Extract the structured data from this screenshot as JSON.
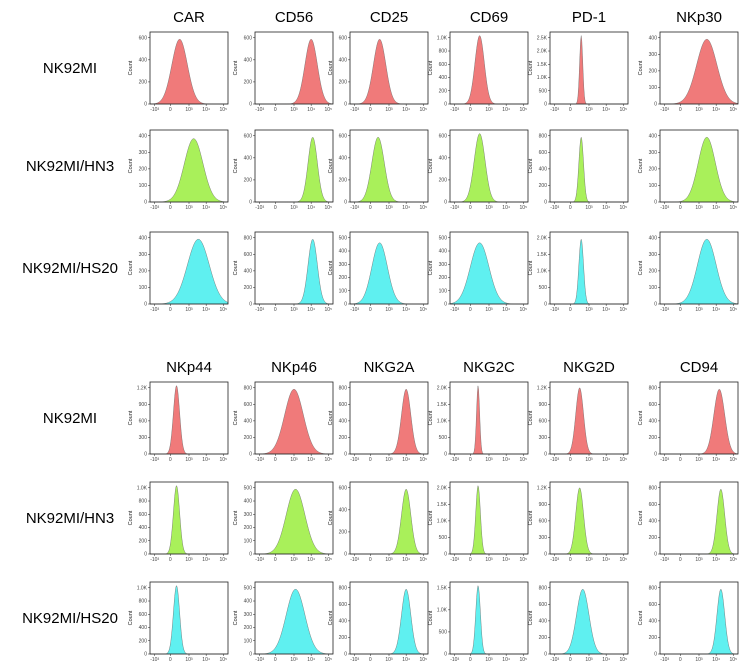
{
  "colors": {
    "NK92MI": "#f07a7a",
    "NK92MI/HN3": "#a9f05a",
    "NK92MI/HS20": "#5ff0f0"
  },
  "chart_data": [
    {
      "type": "histogram_grid",
      "y_axis_label": "Count",
      "x_tick_labels": [
        "-10³",
        "0",
        "10³",
        "10⁴",
        "10⁵"
      ],
      "rows": [
        "NK92MI",
        "NK92MI/HN3",
        "NK92MI/HS20"
      ],
      "columns": [
        {
          "marker": "CAR",
          "yticks": [
            [
              "0",
              "200",
              "400",
              "600"
            ],
            [
              "0",
              "100",
              "200",
              "300",
              "400"
            ],
            [
              "0",
              "100",
              "200",
              "300",
              "400"
            ]
          ],
          "peaks": [
            [
              0.38,
              0.1,
              0.9
            ],
            [
              0.56,
              0.12,
              0.88
            ],
            [
              0.62,
              0.14,
              0.9
            ]
          ]
        },
        {
          "marker": "CD56",
          "yticks": [
            [
              "0",
              "200",
              "400",
              "600"
            ],
            [
              "0",
              "200",
              "400",
              "600"
            ],
            [
              "0",
              "200",
              "400",
              "600",
              "800"
            ]
          ],
          "peaks": [
            [
              0.72,
              0.08,
              0.9
            ],
            [
              0.74,
              0.06,
              0.9
            ],
            [
              0.74,
              0.06,
              0.9
            ]
          ]
        },
        {
          "marker": "CD25",
          "yticks": [
            [
              "0",
              "200",
              "400",
              "600"
            ],
            [
              "0",
              "200",
              "400",
              "600"
            ],
            [
              "0",
              "100",
              "200",
              "300",
              "400",
              "500"
            ]
          ],
          "peaks": [
            [
              0.38,
              0.08,
              0.9
            ],
            [
              0.36,
              0.08,
              0.9
            ],
            [
              0.38,
              0.1,
              0.85
            ]
          ]
        },
        {
          "marker": "CD69",
          "yticks": [
            [
              "0",
              "200",
              "400",
              "600",
              "800",
              "1.0K"
            ],
            [
              "0",
              "200",
              "400",
              "600"
            ],
            [
              "0",
              "100",
              "200",
              "300",
              "400",
              "500"
            ]
          ],
          "peaks": [
            [
              0.38,
              0.06,
              0.95
            ],
            [
              0.38,
              0.07,
              0.95
            ],
            [
              0.38,
              0.12,
              0.85
            ]
          ]
        },
        {
          "marker": "PD-1",
          "yticks": [
            [
              "0",
              "500",
              "1.0K",
              "1.5K",
              "2.0K",
              "2.5K"
            ],
            [
              "0",
              "200",
              "400",
              "600",
              "800"
            ],
            [
              "0",
              "500",
              "1.0K",
              "1.5K",
              "2.0K"
            ]
          ],
          "peaks": [
            [
              0.4,
              0.02,
              0.95
            ],
            [
              0.4,
              0.03,
              0.9
            ],
            [
              0.4,
              0.03,
              0.9
            ]
          ]
        },
        {
          "marker": "NKp30",
          "yticks": [
            [
              "0",
              "100",
              "200",
              "300",
              "400"
            ],
            [
              "0",
              "100",
              "200",
              "300",
              "400"
            ],
            [
              "0",
              "100",
              "200",
              "300",
              "400"
            ]
          ],
          "peaks": [
            [
              0.6,
              0.13,
              0.9
            ],
            [
              0.6,
              0.11,
              0.9
            ],
            [
              0.6,
              0.12,
              0.9
            ]
          ]
        },
        {
          "marker": "NKp44",
          "yticks": [
            [
              "0",
              "300",
              "600",
              "900",
              "1.2K"
            ],
            [
              "0",
              "200",
              "400",
              "600",
              "800",
              "1.0K"
            ],
            [
              "0",
              "200",
              "400",
              "600",
              "800",
              "1.0K"
            ]
          ],
          "peaks": [
            [
              0.34,
              0.04,
              0.95
            ],
            [
              0.34,
              0.04,
              0.95
            ],
            [
              0.34,
              0.04,
              0.95
            ]
          ]
        },
        {
          "marker": "NKp46",
          "yticks": [
            [
              "0",
              "200",
              "400",
              "600",
              "800"
            ],
            [
              "0",
              "100",
              "200",
              "300",
              "400",
              "500"
            ],
            [
              "0",
              "100",
              "200",
              "300",
              "400",
              "500"
            ]
          ],
          "peaks": [
            [
              0.5,
              0.12,
              0.9
            ],
            [
              0.52,
              0.12,
              0.9
            ],
            [
              0.52,
              0.12,
              0.9
            ]
          ]
        },
        {
          "marker": "NKG2A",
          "yticks": [
            [
              "0",
              "200",
              "400",
              "600",
              "800"
            ],
            [
              "0",
              "200",
              "400",
              "600"
            ],
            [
              "0",
              "200",
              "400",
              "600",
              "800"
            ]
          ],
          "peaks": [
            [
              0.72,
              0.06,
              0.9
            ],
            [
              0.72,
              0.06,
              0.9
            ],
            [
              0.72,
              0.06,
              0.9
            ]
          ]
        },
        {
          "marker": "NKG2C",
          "yticks": [
            [
              "0",
              "500",
              "1.0K",
              "1.5K",
              "2.0K"
            ],
            [
              "0",
              "500",
              "1.0K",
              "1.5K",
              "2.0K"
            ],
            [
              "0",
              "500",
              "1.0K",
              "1.5K"
            ]
          ],
          "peaks": [
            [
              0.36,
              0.02,
              0.95
            ],
            [
              0.36,
              0.03,
              0.95
            ],
            [
              0.36,
              0.03,
              0.95
            ]
          ]
        },
        {
          "marker": "NKG2D",
          "yticks": [
            [
              "0",
              "300",
              "600",
              "900",
              "1.2K"
            ],
            [
              "0",
              "300",
              "600",
              "900",
              "1.2K"
            ],
            [
              "0",
              "200",
              "400",
              "600",
              "800"
            ]
          ],
          "peaks": [
            [
              0.38,
              0.05,
              0.92
            ],
            [
              0.38,
              0.05,
              0.92
            ],
            [
              0.42,
              0.08,
              0.9
            ]
          ]
        },
        {
          "marker": "CD94",
          "yticks": [
            [
              "0",
              "200",
              "400",
              "600",
              "800"
            ],
            [
              "0",
              "200",
              "400",
              "600",
              "800"
            ],
            [
              "0",
              "200",
              "400",
              "600",
              "800"
            ]
          ],
          "peaks": [
            [
              0.76,
              0.07,
              0.9
            ],
            [
              0.78,
              0.05,
              0.9
            ],
            [
              0.78,
              0.05,
              0.9
            ]
          ]
        }
      ]
    }
  ]
}
